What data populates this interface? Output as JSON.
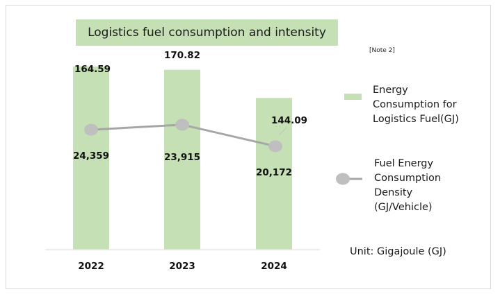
{
  "chart_data": {
    "type": "bar+line",
    "title": "Logistics fuel consumption and intensity",
    "note": "[Note 2]",
    "categories": [
      "2022",
      "2023",
      "2024"
    ],
    "series": [
      {
        "name": "Energy Consumption for Logistics Fuel(GJ)",
        "type": "bar",
        "values": [
          24359,
          23915,
          20172
        ],
        "labels": [
          "24,359",
          "23,915",
          "20,172"
        ],
        "color": "#c5e0b4"
      },
      {
        "name": "Fuel Energy Consumption Density (GJ/Vehicle)",
        "type": "line",
        "values": [
          164.59,
          170.82,
          144.09
        ],
        "labels": [
          "164.59",
          "170.82",
          "144.09"
        ],
        "color": "#a6a6a6",
        "marker_color": "#bfbfbf"
      }
    ],
    "legend": {
      "position": "right",
      "bar_label_lines": [
        "Energy",
        "Consumption for",
        "Logistics Fuel(GJ)"
      ],
      "line_label_lines": [
        "Fuel Energy",
        "Consumption",
        "Density",
        "(GJ/Vehicle)"
      ]
    },
    "unit_label": "Unit: Gigajoule (GJ)",
    "bar_ylim": [
      0,
      26000
    ],
    "line_ylim": [
      0,
      300
    ],
    "grid": false
  }
}
